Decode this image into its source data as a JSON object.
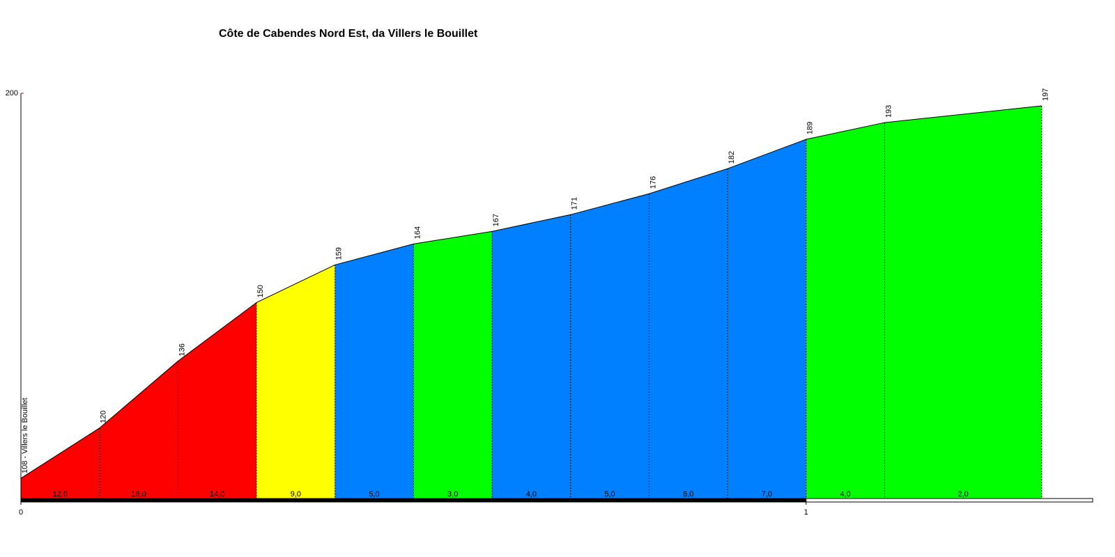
{
  "chart_data": {
    "type": "area",
    "title": "Côte de Cabendes Nord Est, da Villers le Bouillet",
    "x": [
      0,
      0.1,
      0.2,
      0.3,
      0.4,
      0.5,
      0.6,
      0.7,
      0.8,
      0.9,
      1.0,
      1.1,
      1.3
    ],
    "values": [
      108,
      120,
      136,
      150,
      159,
      164,
      167,
      171,
      176,
      182,
      189,
      193,
      197
    ],
    "value_labels": [
      "108 - Villers le Bouillet",
      "120",
      "136",
      "150",
      "159",
      "164",
      "167",
      "171",
      "176",
      "182",
      "189",
      "193",
      "197"
    ],
    "segments": {
      "values": [
        12,
        16,
        14,
        9,
        5,
        3,
        4,
        5,
        6,
        7,
        4,
        2
      ],
      "value_labels": [
        "12,0",
        "16,0",
        "14,0",
        "9,0",
        "5,0",
        "3,0",
        "4,0",
        "5,0",
        "6,0",
        "7,0",
        "4,0",
        "2,0"
      ],
      "colors": [
        "#ff0000",
        "#ff0000",
        "#ff0000",
        "#ffff00",
        "#0080ff",
        "#00ff00",
        "#0080ff",
        "#0080ff",
        "#0080ff",
        "#0080ff",
        "#00ff00",
        "#00ff00"
      ]
    },
    "xlim": [
      0,
      1.365
    ],
    "xticks": [
      0,
      1
    ],
    "ylim": [
      103,
      200
    ],
    "yticks": [
      200
    ]
  }
}
